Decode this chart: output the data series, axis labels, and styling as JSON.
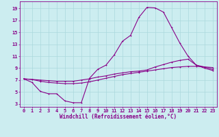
{
  "xlabel": "Windchill (Refroidissement éolien,°C)",
  "ylabel": "",
  "background_color": "#ccedf0",
  "grid_color": "#aad8dc",
  "line_color": "#880088",
  "x_ticks": [
    0,
    1,
    2,
    3,
    4,
    5,
    6,
    7,
    8,
    9,
    10,
    11,
    12,
    13,
    14,
    15,
    16,
    17,
    18,
    19,
    20,
    21,
    22,
    23
  ],
  "y_ticks": [
    3,
    5,
    7,
    9,
    11,
    13,
    15,
    17,
    19
  ],
  "xlim": [
    -0.5,
    23.5
  ],
  "ylim": [
    2.5,
    20.2
  ],
  "series1_x": [
    0,
    1,
    2,
    3,
    4,
    5,
    6,
    7,
    8,
    9,
    10,
    11,
    12,
    13,
    14,
    15,
    16,
    17,
    18,
    19,
    20,
    21,
    22,
    23
  ],
  "series1_y": [
    7.2,
    6.6,
    5.1,
    4.7,
    4.7,
    3.5,
    3.2,
    3.2,
    7.3,
    8.8,
    9.5,
    11.2,
    13.5,
    14.5,
    17.5,
    19.2,
    19.1,
    18.4,
    15.8,
    13.2,
    11.0,
    9.5,
    9.2,
    8.8
  ],
  "series2_x": [
    0,
    1,
    2,
    3,
    4,
    5,
    6,
    7,
    8,
    9,
    10,
    11,
    12,
    13,
    14,
    15,
    16,
    17,
    18,
    19,
    20,
    21,
    22,
    23
  ],
  "series2_y": [
    7.2,
    7.1,
    7.0,
    6.9,
    6.8,
    6.8,
    6.8,
    7.0,
    7.2,
    7.5,
    7.7,
    8.0,
    8.2,
    8.4,
    8.5,
    8.7,
    9.2,
    9.6,
    10.0,
    10.3,
    10.5,
    9.5,
    9.0,
    8.6
  ],
  "series3_x": [
    0,
    1,
    2,
    3,
    4,
    5,
    6,
    7,
    8,
    9,
    10,
    11,
    12,
    13,
    14,
    15,
    16,
    17,
    18,
    19,
    20,
    21,
    22,
    23
  ],
  "series3_y": [
    7.2,
    7.1,
    6.8,
    6.6,
    6.5,
    6.4,
    6.4,
    6.5,
    6.7,
    7.0,
    7.3,
    7.6,
    7.9,
    8.1,
    8.3,
    8.5,
    8.7,
    8.9,
    9.1,
    9.2,
    9.3,
    9.3,
    9.2,
    9.1
  ],
  "linewidth": 0.8,
  "markersize": 2.0,
  "xlabel_fontsize": 5.5,
  "tick_fontsize": 5.0
}
